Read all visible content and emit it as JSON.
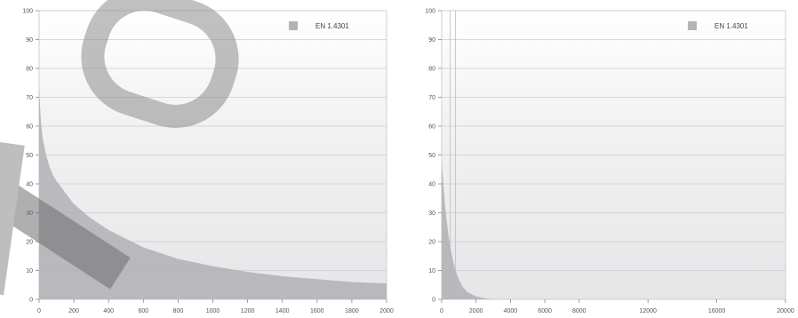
{
  "chart_data": [
    {
      "type": "area",
      "legend": "EN 1.4301",
      "legend_placement": "top-right",
      "grid": true,
      "xlim": [
        0,
        2000
      ],
      "ylim": [
        0,
        100
      ],
      "x_ticks": [
        "0",
        "200",
        "400",
        "600",
        "800",
        "1000",
        "1200",
        "1400",
        "1600",
        "1800",
        "2000"
      ],
      "y_ticks": [
        "0",
        "10",
        "20",
        "30",
        "40",
        "50",
        "60",
        "70",
        "80",
        "90",
        "100"
      ],
      "series": [
        {
          "name": "EN 1.4301",
          "color": "#b4b4b8",
          "x": [
            0,
            10,
            20,
            40,
            60,
            80,
            100,
            150,
            200,
            300,
            400,
            500,
            600,
            800,
            1000,
            1200,
            1400,
            1600,
            1800,
            2000
          ],
          "y": [
            73,
            62,
            56,
            50,
            46,
            43,
            41,
            37,
            33,
            28,
            24,
            21,
            18,
            14,
            11.5,
            9.5,
            8,
            7,
            6,
            5.5
          ]
        }
      ]
    },
    {
      "type": "area",
      "legend": "EN 1.4301",
      "legend_placement": "top-right",
      "grid": true,
      "xlim": [
        0,
        20000
      ],
      "ylim": [
        0,
        100
      ],
      "x_ticks": [
        "0",
        "2000",
        "4000",
        "6000",
        "8000",
        "10000",
        "12000",
        "14000",
        "16000",
        "18000",
        "20000"
      ],
      "visible_x_ticks": [
        "0",
        "2000",
        "4000",
        "6000",
        "8000",
        "12000",
        "16000",
        "20000"
      ],
      "y_ticks": [
        "0",
        "10",
        "20",
        "30",
        "40",
        "50",
        "60",
        "70",
        "80",
        "90",
        "100"
      ],
      "series": [
        {
          "name": "EN 1.4301",
          "color": "#b4b4b8",
          "x": [
            0,
            100,
            200,
            400,
            600,
            800,
            1000,
            1200,
            1500,
            2000,
            2500,
            3000
          ],
          "y": [
            48,
            40,
            32,
            22,
            15,
            10,
            7,
            4.5,
            2.5,
            1,
            0.4,
            0
          ]
        }
      ]
    }
  ]
}
